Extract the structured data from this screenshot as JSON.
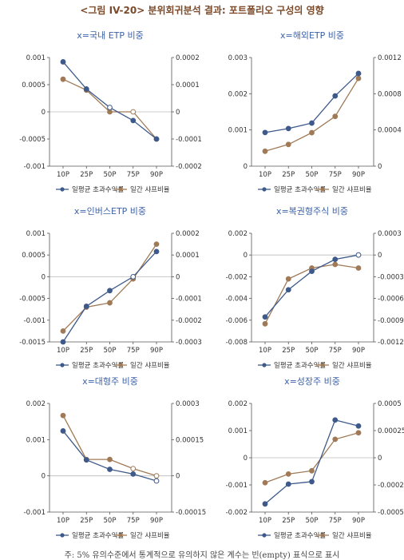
{
  "figure_title": "<그림 IV-20> 분위회귀분석 결과: 포트폴리오 구성의 영향",
  "footnote": "주: 5% 유의수준에서 통계적으로 유의하지 않은 계수는 빈(empty) 표식으로 표시",
  "colors": {
    "series1": "#3e5a8a",
    "series2": "#a07a56",
    "title": "#3c62a8",
    "axis": "#555555"
  },
  "chart_data": [
    {
      "type": "line",
      "title": "x=국내 ETP 비중",
      "categories": [
        "10P",
        "25P",
        "50P",
        "75P",
        "90P"
      ],
      "yleft": {
        "ylim": [
          -0.001,
          0.001
        ],
        "ticks": [
          0.001,
          0.0005,
          0,
          -0.0005,
          -0.001
        ],
        "labels": [
          "0.001",
          "0.0005",
          "0",
          "-0.0005",
          "-0.001"
        ]
      },
      "yright": {
        "ylim": [
          -0.0002,
          0.0002
        ],
        "ticks": [
          0.0002,
          0.0001,
          0,
          -0.0001,
          -0.0002
        ],
        "labels": [
          "0.0002",
          "0.0001",
          "0",
          "-0.0001",
          "-0.0002"
        ]
      },
      "series": [
        {
          "name": "일평균 초과수익률",
          "axis": "left",
          "values": [
            0.00092,
            0.00042,
            8e-05,
            -0.00016,
            -0.0005
          ],
          "empty": [
            false,
            false,
            true,
            false,
            false
          ]
        },
        {
          "name": "일간 샤프비율",
          "axis": "right",
          "values": [
            0.00012,
            8e-05,
            0.0,
            0.0,
            -0.0001
          ],
          "empty": [
            false,
            false,
            false,
            true,
            false
          ]
        }
      ]
    },
    {
      "type": "line",
      "title": "x=해외ETP 비중",
      "categories": [
        "10P",
        "25P",
        "50P",
        "75P",
        "90P"
      ],
      "yleft": {
        "ylim": [
          0,
          0.003
        ],
        "ticks": [
          0.003,
          0.002,
          0.001,
          0
        ],
        "labels": [
          "0.003",
          "0.002",
          "0.001",
          "0"
        ]
      },
      "yright": {
        "ylim": [
          0,
          0.0012
        ],
        "ticks": [
          0.0012,
          0.0008,
          0.0004,
          0
        ],
        "labels": [
          "0.0012",
          "0.0008",
          "0.0004",
          "0"
        ]
      },
      "series": [
        {
          "name": "일평균 초과수익률",
          "axis": "left",
          "values": [
            0.00093,
            0.00104,
            0.00119,
            0.00194,
            0.00256
          ],
          "empty": [
            false,
            false,
            false,
            false,
            false
          ]
        },
        {
          "name": "일간 샤프비율",
          "axis": "right",
          "values": [
            0.000165,
            0.00024,
            0.00037,
            0.00055,
            0.00097
          ],
          "empty": [
            false,
            false,
            false,
            false,
            false
          ]
        }
      ]
    },
    {
      "type": "line",
      "title": "x=인버스ETP 비중",
      "categories": [
        "10P",
        "25P",
        "50P",
        "75P",
        "90P"
      ],
      "yleft": {
        "ylim": [
          -0.0015,
          0.001
        ],
        "ticks": [
          0.001,
          0.0005,
          0,
          -0.0005,
          -0.001,
          -0.0015
        ],
        "labels": [
          "0.001",
          "0.0005",
          "0",
          "-0.0005",
          "-0.001",
          "-0.0015"
        ]
      },
      "yright": {
        "ylim": [
          -0.0003,
          0.0002
        ],
        "ticks": [
          0.0002,
          0.0001,
          0,
          -0.0001,
          -0.0002,
          -0.0003
        ],
        "labels": [
          "0.0002",
          "0.0001",
          "0",
          "-0.0001",
          "-0.0002",
          "-0.0003"
        ]
      },
      "series": [
        {
          "name": "일평균 초과수익률",
          "axis": "left",
          "values": [
            -0.0015,
            -0.00068,
            -0.00032,
            0.0,
            0.00058
          ],
          "empty": [
            false,
            false,
            false,
            true,
            false
          ]
        },
        {
          "name": "일간 샤프비율",
          "axis": "right",
          "values": [
            -0.00025,
            -0.00014,
            -0.00012,
            -1e-05,
            0.00015
          ],
          "empty": [
            false,
            false,
            false,
            false,
            false
          ]
        }
      ]
    },
    {
      "type": "line",
      "title": "x=복권형주식 비중",
      "categories": [
        "10P",
        "25P",
        "50P",
        "75P",
        "90P"
      ],
      "yleft": {
        "ylim": [
          -0.008,
          0.002
        ],
        "ticks": [
          0.002,
          0,
          -0.002,
          -0.004,
          -0.006,
          -0.008
        ],
        "labels": [
          "0.002",
          "0",
          "-0.002",
          "-0.004",
          "-0.006",
          "-0.008"
        ]
      },
      "yright": {
        "ylim": [
          -0.0012,
          0.0003
        ],
        "ticks": [
          0.0003,
          0,
          -0.0003,
          -0.0006,
          -0.0009,
          -0.0012
        ],
        "labels": [
          "0.0003",
          "0",
          "-0.0003",
          "-0.0006",
          "-0.0009",
          "-0.0012"
        ]
      },
      "series": [
        {
          "name": "일평균 초과수익률",
          "axis": "left",
          "values": [
            -0.0057,
            -0.0032,
            -0.0015,
            -0.0004,
            0.0
          ],
          "empty": [
            false,
            false,
            false,
            false,
            true
          ]
        },
        {
          "name": "일간 샤프비율",
          "axis": "right",
          "values": [
            -0.00095,
            -0.00033,
            -0.00018,
            -0.00013,
            -0.00018
          ],
          "empty": [
            false,
            false,
            false,
            false,
            false
          ]
        }
      ]
    },
    {
      "type": "line",
      "title": "x=대형주 비중",
      "categories": [
        "10P",
        "25P",
        "50P",
        "75P",
        "90P"
      ],
      "yleft": {
        "ylim": [
          -0.001,
          0.002
        ],
        "ticks": [
          0.002,
          0.001,
          0,
          -0.001
        ],
        "labels": [
          "0.002",
          "0.001",
          "0",
          "-0.001"
        ]
      },
      "yright": {
        "ylim": [
          -0.00015,
          0.0003
        ],
        "ticks": [
          0.0003,
          0.00015,
          0,
          -0.00015
        ],
        "labels": [
          "0.0003",
          "0.00015",
          "0",
          "-0.00015"
        ]
      },
      "series": [
        {
          "name": "일평균 초과수익률",
          "axis": "left",
          "values": [
            0.00124,
            0.00044,
            0.00018,
            5e-05,
            -0.00014
          ],
          "empty": [
            false,
            false,
            false,
            false,
            true
          ]
        },
        {
          "name": "일간 샤프비율",
          "axis": "right",
          "values": [
            0.00025,
            6.8e-05,
            6.8e-05,
            3e-05,
            0.0
          ],
          "empty": [
            false,
            false,
            false,
            true,
            true
          ]
        }
      ]
    },
    {
      "type": "line",
      "title": "x=성장주 비중",
      "categories": [
        "10P",
        "25P",
        "50P",
        "75P",
        "90P"
      ],
      "yleft": {
        "ylim": [
          -0.002,
          0.002
        ],
        "ticks": [
          0.002,
          0.001,
          0,
          -0.001,
          -0.002
        ],
        "labels": [
          "0.002",
          "0.001",
          "0",
          "-0.001",
          "-0.002"
        ]
      },
      "yright": {
        "ylim": [
          -0.0005,
          0.0005
        ],
        "ticks": [
          0.0005,
          0.00025,
          0,
          -0.00025,
          -0.0005
        ],
        "labels": [
          "0.0005",
          "0.00025",
          "0",
          "-0.00025",
          "-0.0005"
        ]
      },
      "series": [
        {
          "name": "일평균 초과수익률",
          "axis": "left",
          "values": [
            -0.0017,
            -0.00097,
            -0.00088,
            0.00139,
            0.00117
          ],
          "empty": [
            false,
            false,
            false,
            false,
            false
          ]
        },
        {
          "name": "일간 샤프비율",
          "axis": "right",
          "values": [
            -0.00023,
            -0.00015,
            -0.00012,
            0.00017,
            0.00023
          ],
          "empty": [
            false,
            false,
            false,
            false,
            false
          ]
        }
      ]
    }
  ]
}
